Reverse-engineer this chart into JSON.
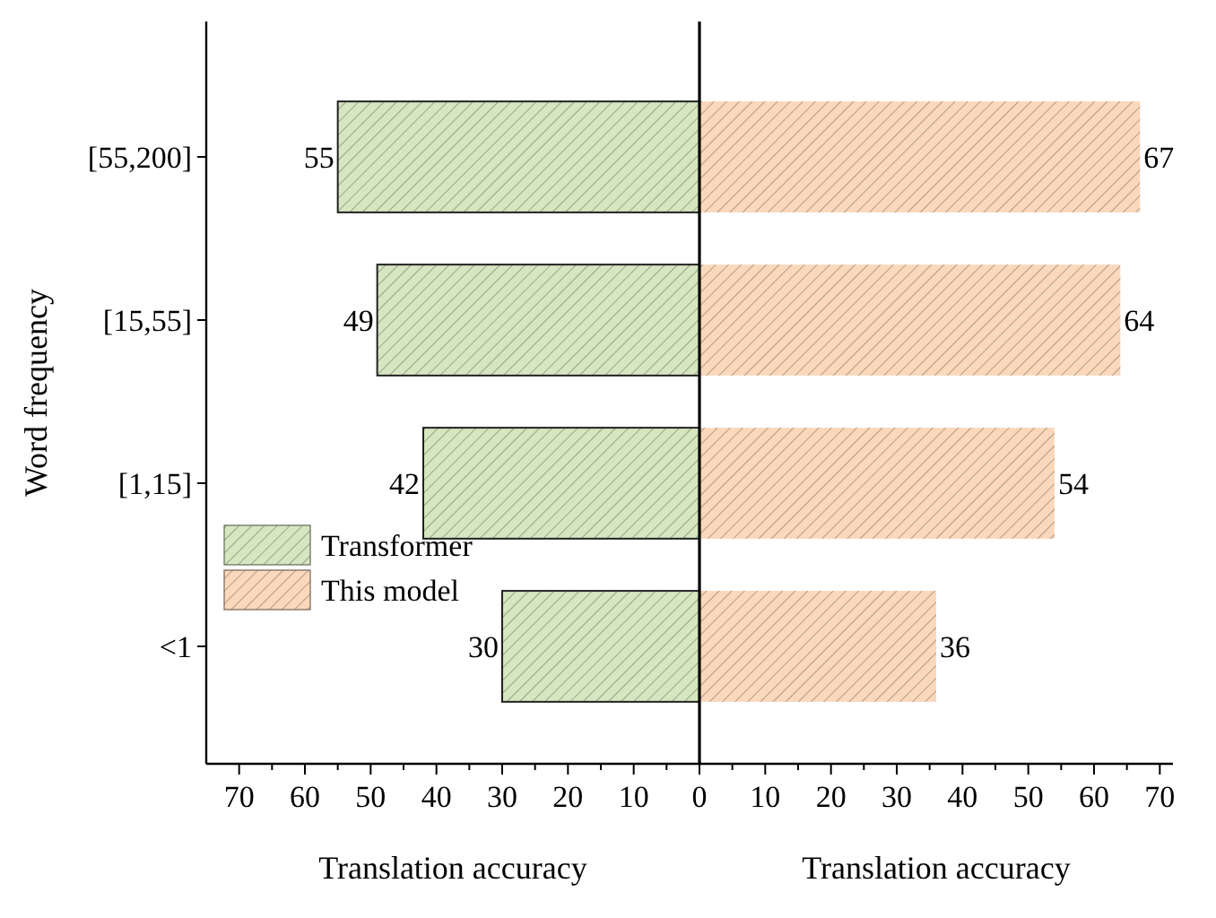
{
  "chart_data": [
    {
      "type": "bar",
      "orientation": "horizontal",
      "ylabel": "Word frequency",
      "xlabel": "Translation accuracy",
      "tick_labels": "xy",
      "categories": [
        "[55,200]",
        "[15,55]",
        "[1,15]",
        "<1"
      ],
      "series": [
        {
          "name": "Transformer",
          "color": "#d6e6c0",
          "values": [
            55,
            49,
            42,
            30
          ]
        }
      ],
      "data_labels": true,
      "xlim": [
        75,
        0
      ],
      "xticks": [
        70,
        {
          "value": 65,
          "label": null
        },
        60,
        {
          "value": 55,
          "label": null
        },
        50,
        {
          "value": 45,
          "label": null
        },
        40,
        {
          "value": 35,
          "label": null
        },
        30,
        {
          "value": 25,
          "label": null
        },
        20,
        {
          "value": 15,
          "label": null
        },
        10,
        {
          "value": 5,
          "label": null
        }
      ],
      "legend": "bottom left",
      "grid": false
    },
    {
      "type": "bar",
      "orientation": "horizontal",
      "xlabel": "Translation accuracy",
      "tick_labels": "x",
      "categories": [
        null,
        null,
        null,
        null
      ],
      "series": [
        {
          "name": "This model",
          "color": "#fbd8bb",
          "values": [
            67,
            64,
            54,
            36
          ]
        }
      ],
      "data_labels": true,
      "xlim": [
        0,
        72
      ],
      "xticks": [
        0,
        {
          "value": 5,
          "label": null
        },
        10,
        {
          "value": 15,
          "label": null
        },
        20,
        {
          "value": 25,
          "label": null
        },
        30,
        {
          "value": 35,
          "label": null
        },
        40,
        {
          "value": 45,
          "label": null
        },
        50,
        {
          "value": 55,
          "label": null
        },
        60,
        {
          "value": 65,
          "label": null
        },
        70
      ],
      "legend": "bottom left",
      "grid": false
    }
  ]
}
